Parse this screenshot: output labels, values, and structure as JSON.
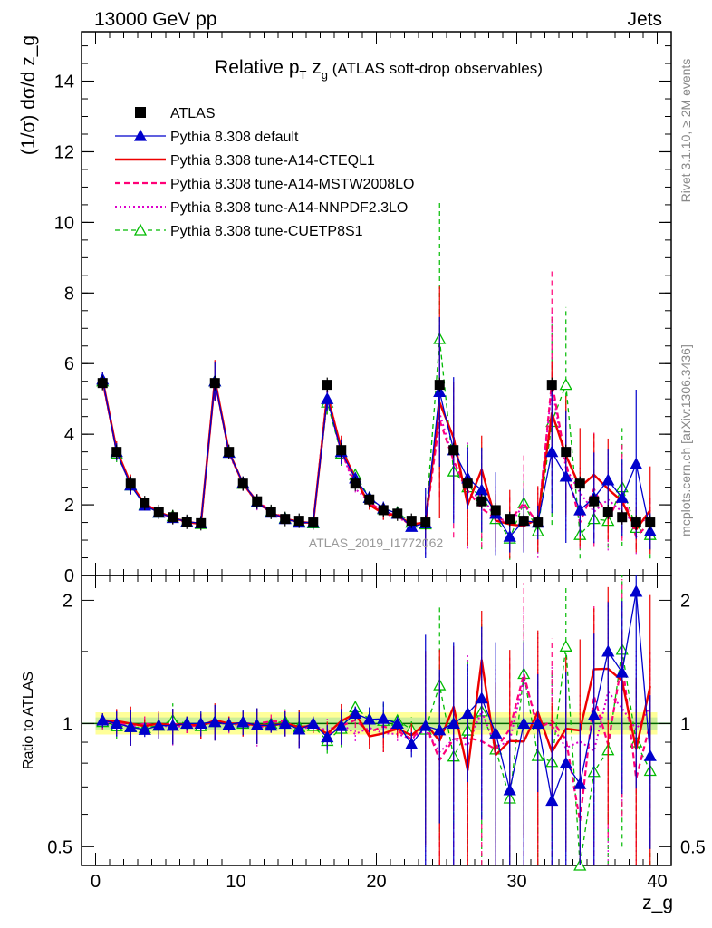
{
  "header": {
    "left": "13000 GeV pp",
    "right": "Jets",
    "side_rivet": "Rivet 3.1.10, ≥ 2M events",
    "side_mcplots": "mcplots.cern.ch [arXiv:1306.3436]",
    "analysis_tag": "ATLAS_2019_I1772062"
  },
  "chart_data": [
    {
      "type": "line",
      "panel": "main",
      "title_parts": {
        "a": "Relative p",
        "sub1": "T",
        "b": " z",
        "sub2": "g",
        "c": " (ATLAS soft-drop observables)"
      },
      "ylabel": "(1/σ) dσ/d z_g",
      "ylim": [
        0,
        15.4
      ],
      "yticks": [
        0,
        2,
        4,
        6,
        8,
        10,
        12,
        14
      ],
      "ytick_labels": [
        "0",
        "2",
        "4",
        "6",
        "8",
        "10",
        "12",
        "14"
      ],
      "xlim": [
        -1,
        41
      ],
      "x": [
        0.5,
        1.5,
        2.5,
        3.5,
        4.5,
        5.5,
        6.5,
        7.5,
        8.5,
        9.5,
        10.5,
        11.5,
        12.5,
        13.5,
        14.5,
        15.5,
        16.5,
        17.5,
        18.5,
        19.5,
        20.5,
        21.5,
        22.5,
        23.5,
        24.5,
        25.5,
        26.5,
        27.5,
        28.5,
        29.5,
        30.5,
        31.5,
        32.5,
        33.5,
        34.5,
        35.5,
        36.5,
        37.5,
        38.5,
        39.5
      ],
      "series": [
        {
          "name": "ATLAS",
          "color": "#000000",
          "style": "data",
          "values": [
            5.45,
            3.5,
            2.6,
            2.05,
            1.8,
            1.65,
            1.52,
            1.48,
            5.45,
            3.5,
            2.6,
            2.1,
            1.8,
            1.6,
            1.55,
            1.5,
            5.4,
            3.55,
            2.6,
            2.15,
            1.85,
            1.75,
            1.55,
            1.5,
            5.4,
            3.55,
            2.6,
            2.1,
            1.85,
            1.6,
            1.55,
            1.5,
            5.4,
            3.5,
            2.6,
            2.1,
            1.8,
            1.65,
            1.5,
            1.5
          ]
        },
        {
          "name": "Pythia 8.308 default",
          "color": "#0000cc",
          "style": "tri-solid",
          "values": [
            5.55,
            3.5,
            2.55,
            1.98,
            1.78,
            1.63,
            1.52,
            1.48,
            5.5,
            3.48,
            2.62,
            2.08,
            1.78,
            1.6,
            1.5,
            1.5,
            5.0,
            3.5,
            2.75,
            2.2,
            1.9,
            1.75,
            1.38,
            1.48,
            5.2,
            3.55,
            2.75,
            2.42,
            1.75,
            1.1,
            1.55,
            1.5,
            3.5,
            2.8,
            1.85,
            2.2,
            2.7,
            2.2,
            3.15,
            1.25
          ]
        },
        {
          "name": "Pythia 8.308 tune-A14-CTEQL1",
          "color": "#ee0000",
          "style": "solid",
          "values": [
            5.55,
            3.55,
            2.6,
            2.02,
            1.8,
            1.63,
            1.52,
            1.46,
            5.55,
            3.5,
            2.6,
            2.08,
            1.78,
            1.6,
            1.52,
            1.48,
            5.1,
            3.6,
            2.75,
            2.0,
            1.75,
            1.7,
            1.45,
            1.5,
            4.9,
            3.9,
            2.0,
            3.0,
            1.55,
            1.45,
            1.4,
            1.6,
            4.6,
            3.4,
            2.5,
            2.85,
            2.45,
            2.1,
            1.3,
            1.85
          ]
        },
        {
          "name": "Pythia 8.308 tune-A14-MSTW2008LO",
          "color": "#ff0077",
          "style": "dashed",
          "values": [
            5.5,
            3.55,
            2.55,
            2.05,
            1.78,
            1.65,
            1.5,
            1.46,
            5.5,
            3.5,
            2.6,
            2.1,
            1.82,
            1.62,
            1.5,
            1.5,
            5.05,
            3.5,
            2.65,
            2.05,
            1.82,
            1.68,
            1.42,
            1.5,
            4.4,
            3.25,
            2.4,
            1.9,
            1.6,
            1.55,
            2.05,
            1.45,
            5.5,
            3.2,
            1.5,
            2.45,
            1.6,
            2.35,
            1.1,
            1.5
          ]
        },
        {
          "name": "Pythia 8.308 tune-A14-NNPDF2.3LO",
          "color": "#dd00cc",
          "style": "dotted",
          "values": [
            5.5,
            3.5,
            2.55,
            2.05,
            1.78,
            1.62,
            1.5,
            1.46,
            5.55,
            3.45,
            2.6,
            2.05,
            1.78,
            1.6,
            1.5,
            1.48,
            5.2,
            3.55,
            2.45,
            2.1,
            1.75,
            1.65,
            1.42,
            1.45,
            4.6,
            3.25,
            2.3,
            2.25,
            1.62,
            1.45,
            2.0,
            1.5,
            5.35,
            3.05,
            2.35,
            1.8,
            2.15,
            1.8,
            1.45,
            1.65
          ]
        },
        {
          "name": "Pythia 8.308 tune-CUETP8S1",
          "color": "#00bb00",
          "style": "tri-dashed",
          "values": [
            5.5,
            3.45,
            2.55,
            2.0,
            1.78,
            1.68,
            1.52,
            1.46,
            5.5,
            3.48,
            2.6,
            2.08,
            1.8,
            1.62,
            1.52,
            1.48,
            4.9,
            3.45,
            2.85,
            2.2,
            1.88,
            1.78,
            1.5,
            1.45,
            6.7,
            2.95,
            2.5,
            2.25,
            1.6,
            1.05,
            2.05,
            1.25,
            4.35,
            5.4,
            1.15,
            1.6,
            1.55,
            2.5,
            1.35,
            1.15
          ]
        }
      ]
    },
    {
      "type": "line",
      "panel": "ratio",
      "ylabel": "Ratio to ATLAS",
      "ylim": [
        0.45,
        2.3
      ],
      "yscale": "log",
      "yticks": [
        0.5,
        1,
        2
      ],
      "ytick_labels": [
        "0.5",
        "1",
        "2"
      ],
      "xlim": [
        -1,
        41
      ],
      "xticks": [
        0,
        10,
        20,
        30,
        40
      ],
      "xtick_labels": [
        "0",
        "10",
        "20",
        "30",
        "40"
      ],
      "xlabel": "z_g",
      "reference": 1
    }
  ],
  "legend": [
    {
      "label": "ATLAS",
      "color": "#000000",
      "style": "data"
    },
    {
      "label": "Pythia 8.308 default",
      "color": "#0000cc",
      "style": "tri-solid"
    },
    {
      "label": "Pythia 8.308 tune-A14-CTEQL1",
      "color": "#ee0000",
      "style": "solid"
    },
    {
      "label": "Pythia 8.308 tune-A14-MSTW2008LO",
      "color": "#ff0077",
      "style": "dashed"
    },
    {
      "label": "Pythia 8.308 tune-A14-NNPDF2.3LO",
      "color": "#dd00cc",
      "style": "dotted"
    },
    {
      "label": "Pythia 8.308 tune-CUETP8S1",
      "color": "#00bb00",
      "style": "tri-dashed"
    }
  ]
}
